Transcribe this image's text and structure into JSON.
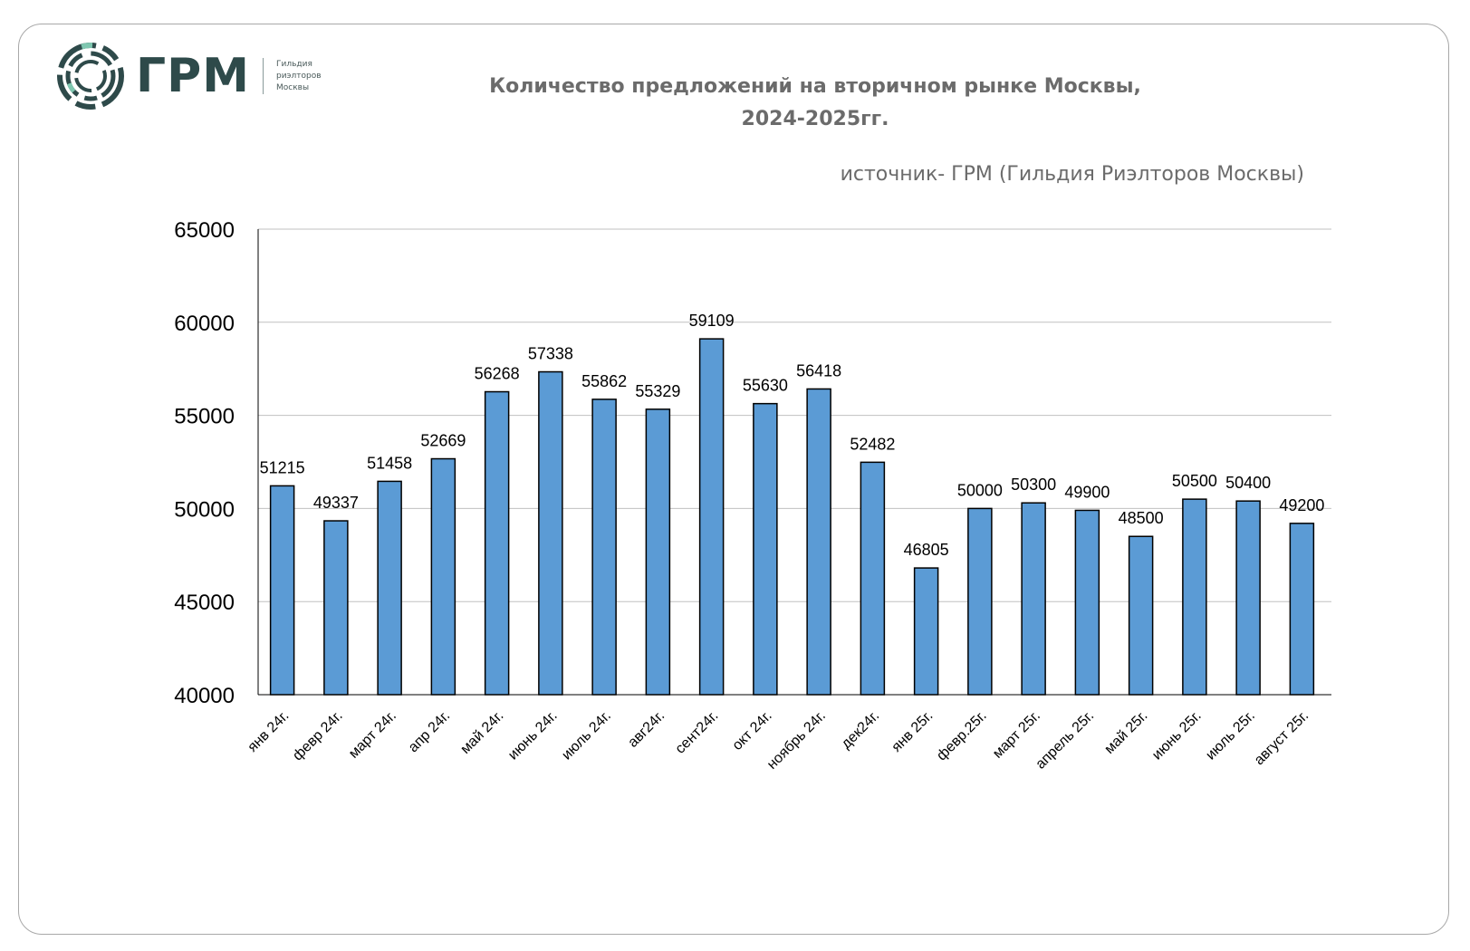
{
  "logo": {
    "mark": "grm-circle-logo",
    "name": "ГРМ",
    "subtitle": [
      "Гильдия",
      "риэлторов",
      "Москвы"
    ]
  },
  "title": "Количество  предложений на вторичном рынке Москвы,\n2024-2025гг.",
  "source": "источник- ГРМ (Гильдия Риэлторов Москвы)",
  "chart_data": {
    "type": "bar",
    "categories": [
      "янв 24г.",
      "февр 24г.",
      "март 24г.",
      "апр 24г.",
      "май 24г.",
      "июнь 24г.",
      "июль 24г.",
      "авг24г.",
      "сент24г.",
      "окт 24г.",
      "ноябрь 24г.",
      "дек24г.",
      "янв 25г.",
      "февр.25г.",
      "март 25г.",
      "апрель 25г.",
      "май 25г.",
      "июнь 25г.",
      "июль 25г.",
      "август 25г."
    ],
    "values": [
      51215,
      49337,
      51458,
      52669,
      56268,
      57338,
      55862,
      55329,
      59109,
      55630,
      56418,
      52482,
      46805,
      50000,
      50300,
      49900,
      48500,
      50500,
      50400,
      49200
    ],
    "data_labels": [
      "51215",
      "49337",
      "51458",
      "52669",
      "56268",
      "57338",
      "55862",
      "55329",
      "59109",
      "55630",
      "56418",
      "52482",
      "46805",
      "50000",
      "50300",
      "49900",
      "48500",
      "50500",
      "50400",
      "49200"
    ],
    "ylim": [
      40000,
      65000
    ],
    "yticks": [
      40000,
      45000,
      50000,
      55000,
      60000,
      65000
    ],
    "ytick_labels": [
      "40000",
      "45000",
      "50000",
      "55000",
      "60000",
      "65000"
    ],
    "grid": true,
    "legend": "none",
    "bar_color": "#5b9bd5",
    "bar_edge_color": "#000000",
    "grid_color": "#c0c0c0"
  }
}
